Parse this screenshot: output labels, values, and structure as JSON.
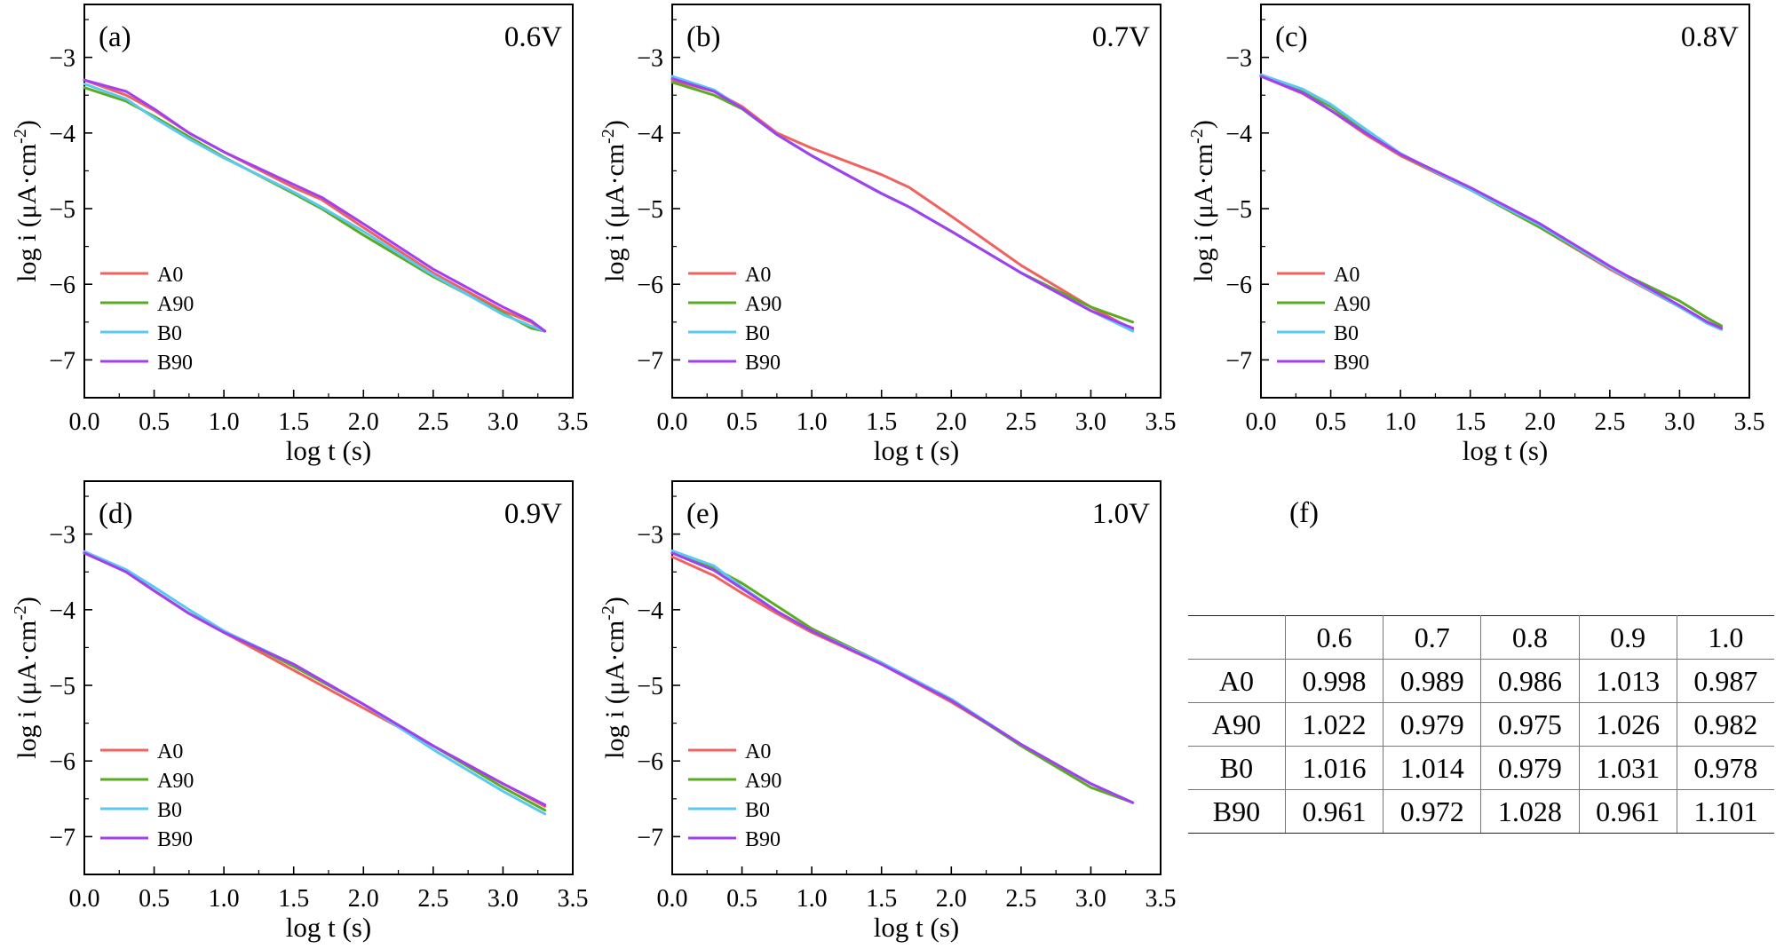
{
  "chart_data": [
    {
      "type": "line",
      "panel": "(a)",
      "voltage": "0.6V",
      "xlabel": "log t (s)",
      "ylabel_main": "log i (μA·cm",
      "ylabel_sup": "-2",
      "ylabel_end": ")",
      "xlim": [
        0,
        3.5
      ],
      "ylim": [
        -7.5,
        -2.3
      ],
      "xticks": [
        "0.0",
        "0.5",
        "1.0",
        "1.5",
        "2.0",
        "2.5",
        "3.0",
        "3.5"
      ],
      "yticks": [
        "−3",
        "−4",
        "−5",
        "−6",
        "−7"
      ],
      "series": [
        {
          "name": "A0",
          "color": "#f0625f",
          "x": [
            0,
            0.3,
            0.5,
            0.75,
            1.0,
            1.5,
            1.7,
            2.0,
            2.5,
            3.0,
            3.2,
            3.3
          ],
          "y": [
            -3.3,
            -3.5,
            -3.7,
            -4.0,
            -4.25,
            -4.72,
            -4.88,
            -5.25,
            -5.85,
            -6.35,
            -6.5,
            -6.62
          ]
        },
        {
          "name": "A90",
          "color": "#5aab22",
          "x": [
            0,
            0.3,
            0.5,
            0.75,
            1.0,
            1.5,
            1.7,
            2.0,
            2.5,
            3.0,
            3.2,
            3.3
          ],
          "y": [
            -3.4,
            -3.58,
            -3.78,
            -4.05,
            -4.32,
            -4.8,
            -5.0,
            -5.35,
            -5.9,
            -6.38,
            -6.58,
            -6.62
          ]
        },
        {
          "name": "B0",
          "color": "#5bc8f0",
          "x": [
            0,
            0.3,
            0.5,
            0.75,
            1.0,
            1.5,
            1.7,
            2.0,
            2.5,
            3.0,
            3.2,
            3.3
          ],
          "y": [
            -3.35,
            -3.55,
            -3.8,
            -4.08,
            -4.33,
            -4.78,
            -4.98,
            -5.3,
            -5.88,
            -6.4,
            -6.55,
            -6.62
          ]
        },
        {
          "name": "B90",
          "color": "#a23ff0",
          "x": [
            0,
            0.3,
            0.5,
            0.75,
            1.0,
            1.5,
            1.7,
            2.0,
            2.5,
            3.0,
            3.2,
            3.3
          ],
          "y": [
            -3.3,
            -3.45,
            -3.68,
            -4.0,
            -4.25,
            -4.68,
            -4.85,
            -5.2,
            -5.8,
            -6.3,
            -6.48,
            -6.62
          ]
        }
      ]
    },
    {
      "type": "line",
      "panel": "(b)",
      "voltage": "0.7V",
      "xlabel": "log t (s)",
      "ylabel_main": "log i (μA·cm",
      "ylabel_sup": "-2",
      "ylabel_end": ")",
      "xlim": [
        0,
        3.5
      ],
      "ylim": [
        -7.5,
        -2.3
      ],
      "xticks": [
        "0.0",
        "0.5",
        "1.0",
        "1.5",
        "2.0",
        "2.5",
        "3.0",
        "3.5"
      ],
      "yticks": [
        "−3",
        "−4",
        "−5",
        "−6",
        "−7"
      ],
      "series": [
        {
          "name": "A0",
          "color": "#f0625f",
          "x": [
            0,
            0.3,
            0.5,
            0.75,
            1.0,
            1.5,
            1.7,
            2.0,
            2.5,
            3.0,
            3.3
          ],
          "y": [
            -3.3,
            -3.45,
            -3.65,
            -4.0,
            -4.2,
            -4.55,
            -4.72,
            -5.1,
            -5.75,
            -6.3,
            -6.6
          ]
        },
        {
          "name": "A90",
          "color": "#5aab22",
          "x": [
            0,
            0.3,
            0.5,
            0.75,
            1.0,
            1.5,
            1.7,
            2.0,
            2.5,
            3.0,
            3.3
          ],
          "y": [
            -3.33,
            -3.5,
            -3.68,
            -4.02,
            -4.3,
            -4.8,
            -4.98,
            -5.3,
            -5.85,
            -6.3,
            -6.5
          ]
        },
        {
          "name": "B0",
          "color": "#5bc8f0",
          "x": [
            0,
            0.3,
            0.5,
            0.75,
            1.0,
            1.5,
            1.7,
            2.0,
            2.5,
            3.0,
            3.3
          ],
          "y": [
            -3.25,
            -3.43,
            -3.67,
            -4.02,
            -4.3,
            -4.8,
            -4.98,
            -5.3,
            -5.85,
            -6.35,
            -6.62
          ]
        },
        {
          "name": "B90",
          "color": "#a23ff0",
          "x": [
            0,
            0.3,
            0.5,
            0.75,
            1.0,
            1.5,
            1.7,
            2.0,
            2.5,
            3.0,
            3.3
          ],
          "y": [
            -3.28,
            -3.45,
            -3.67,
            -4.02,
            -4.3,
            -4.8,
            -4.98,
            -5.3,
            -5.85,
            -6.35,
            -6.58
          ]
        }
      ]
    },
    {
      "type": "line",
      "panel": "(c)",
      "voltage": "0.8V",
      "xlabel": "log t (s)",
      "ylabel_main": "log i (μA·cm",
      "ylabel_sup": "-2",
      "ylabel_end": ")",
      "xlim": [
        0,
        3.5
      ],
      "ylim": [
        -7.5,
        -2.3
      ],
      "xticks": [
        "0.0",
        "0.5",
        "1.0",
        "1.5",
        "2.0",
        "2.5",
        "3.0",
        "3.5"
      ],
      "yticks": [
        "−3",
        "−4",
        "−5",
        "−6",
        "−7"
      ],
      "series": [
        {
          "name": "A0",
          "color": "#f0625f",
          "x": [
            0,
            0.3,
            0.5,
            0.75,
            1.0,
            1.5,
            2.0,
            2.5,
            3.0,
            3.2,
            3.3
          ],
          "y": [
            -3.25,
            -3.48,
            -3.7,
            -4.02,
            -4.3,
            -4.75,
            -5.25,
            -5.8,
            -6.3,
            -6.5,
            -6.58
          ]
        },
        {
          "name": "A90",
          "color": "#5aab22",
          "x": [
            0,
            0.3,
            0.5,
            0.75,
            1.0,
            1.5,
            2.0,
            2.5,
            3.0,
            3.2,
            3.3
          ],
          "y": [
            -3.25,
            -3.45,
            -3.65,
            -3.98,
            -4.28,
            -4.75,
            -5.25,
            -5.78,
            -6.22,
            -6.45,
            -6.55
          ]
        },
        {
          "name": "B0",
          "color": "#5bc8f0",
          "x": [
            0,
            0.3,
            0.5,
            0.75,
            1.0,
            1.5,
            2.0,
            2.5,
            3.0,
            3.2,
            3.3
          ],
          "y": [
            -3.23,
            -3.42,
            -3.62,
            -3.95,
            -4.27,
            -4.75,
            -5.22,
            -5.78,
            -6.3,
            -6.52,
            -6.6
          ]
        },
        {
          "name": "B90",
          "color": "#a23ff0",
          "x": [
            0,
            0.3,
            0.5,
            0.75,
            1.0,
            1.5,
            2.0,
            2.5,
            3.0,
            3.2,
            3.3
          ],
          "y": [
            -3.25,
            -3.47,
            -3.7,
            -4.0,
            -4.28,
            -4.72,
            -5.2,
            -5.76,
            -6.28,
            -6.5,
            -6.58
          ]
        }
      ]
    },
    {
      "type": "line",
      "panel": "(d)",
      "voltage": "0.9V",
      "xlabel": "log t (s)",
      "ylabel_main": "log i (μA·cm",
      "ylabel_sup": "-2",
      "ylabel_end": ")",
      "xlim": [
        0,
        3.5
      ],
      "ylim": [
        -7.5,
        -2.3
      ],
      "xticks": [
        "0.0",
        "0.5",
        "1.0",
        "1.5",
        "2.0",
        "2.5",
        "3.0",
        "3.5"
      ],
      "yticks": [
        "−3",
        "−4",
        "−5",
        "−6",
        "−7"
      ],
      "series": [
        {
          "name": "A0",
          "color": "#f0625f",
          "x": [
            0,
            0.3,
            0.5,
            0.75,
            1.0,
            1.5,
            2.0,
            2.5,
            3.0,
            3.3
          ],
          "y": [
            -3.25,
            -3.5,
            -3.75,
            -4.05,
            -4.3,
            -4.8,
            -5.3,
            -5.8,
            -6.3,
            -6.6
          ]
        },
        {
          "name": "A90",
          "color": "#5aab22",
          "x": [
            0,
            0.3,
            0.5,
            0.75,
            1.0,
            1.5,
            2.0,
            2.5,
            3.0,
            3.3
          ],
          "y": [
            -3.25,
            -3.5,
            -3.75,
            -4.05,
            -4.28,
            -4.75,
            -5.25,
            -5.8,
            -6.35,
            -6.65
          ]
        },
        {
          "name": "B0",
          "color": "#5bc8f0",
          "x": [
            0,
            0.3,
            0.5,
            0.75,
            1.0,
            1.5,
            2.0,
            2.5,
            3.0,
            3.3
          ],
          "y": [
            -3.23,
            -3.47,
            -3.7,
            -4.0,
            -4.28,
            -4.72,
            -5.25,
            -5.85,
            -6.4,
            -6.7
          ]
        },
        {
          "name": "B90",
          "color": "#a23ff0",
          "x": [
            0,
            0.3,
            0.5,
            0.75,
            1.0,
            1.5,
            2.0,
            2.5,
            3.0,
            3.3
          ],
          "y": [
            -3.25,
            -3.5,
            -3.75,
            -4.05,
            -4.3,
            -4.72,
            -5.25,
            -5.8,
            -6.3,
            -6.58
          ]
        }
      ]
    },
    {
      "type": "line",
      "panel": "(e)",
      "voltage": "1.0V",
      "xlabel": "log t (s)",
      "ylabel_main": "log i (μA·cm",
      "ylabel_sup": "-2",
      "ylabel_end": ")",
      "xlim": [
        0,
        3.5
      ],
      "ylim": [
        -7.5,
        -2.3
      ],
      "xticks": [
        "0.0",
        "0.5",
        "1.0",
        "1.5",
        "2.0",
        "2.5",
        "3.0",
        "3.5"
      ],
      "yticks": [
        "−3",
        "−4",
        "−5",
        "−6",
        "−7"
      ],
      "series": [
        {
          "name": "A0",
          "color": "#f0625f",
          "x": [
            0,
            0.3,
            0.5,
            0.75,
            1.0,
            1.5,
            2.0,
            2.5,
            3.0,
            3.3
          ],
          "y": [
            -3.3,
            -3.55,
            -3.78,
            -4.05,
            -4.3,
            -4.72,
            -5.22,
            -5.78,
            -6.3,
            -6.55
          ]
        },
        {
          "name": "A90",
          "color": "#5aab22",
          "x": [
            0,
            0.3,
            0.5,
            0.75,
            1.0,
            1.5,
            2.0,
            2.5,
            3.0,
            3.3
          ],
          "y": [
            -3.25,
            -3.45,
            -3.65,
            -3.95,
            -4.25,
            -4.7,
            -5.2,
            -5.8,
            -6.35,
            -6.55
          ]
        },
        {
          "name": "B0",
          "color": "#5bc8f0",
          "x": [
            0,
            0.3,
            0.5,
            0.75,
            1.0,
            1.5,
            2.0,
            2.5,
            3.0,
            3.3
          ],
          "y": [
            -3.22,
            -3.42,
            -3.7,
            -4.02,
            -4.28,
            -4.7,
            -5.18,
            -5.78,
            -6.3,
            -6.55
          ]
        },
        {
          "name": "B90",
          "color": "#a23ff0",
          "x": [
            0,
            0.3,
            0.5,
            0.75,
            1.0,
            1.5,
            2.0,
            2.5,
            3.0,
            3.3
          ],
          "y": [
            -3.25,
            -3.48,
            -3.72,
            -4.02,
            -4.28,
            -4.72,
            -5.2,
            -5.78,
            -6.3,
            -6.55
          ]
        }
      ]
    },
    {
      "type": "table",
      "panel": "(f)",
      "columns": [
        "",
        "0.6",
        "0.7",
        "0.8",
        "0.9",
        "1.0"
      ],
      "rows": [
        [
          "A0",
          "0.998",
          "0.989",
          "0.986",
          "1.013",
          "0.987"
        ],
        [
          "A90",
          "1.022",
          "0.979",
          "0.975",
          "1.026",
          "0.982"
        ],
        [
          "B0",
          "1.016",
          "1.014",
          "0.979",
          "1.031",
          "0.978"
        ],
        [
          "B90",
          "0.961",
          "0.972",
          "1.028",
          "0.961",
          "1.101"
        ]
      ]
    }
  ]
}
